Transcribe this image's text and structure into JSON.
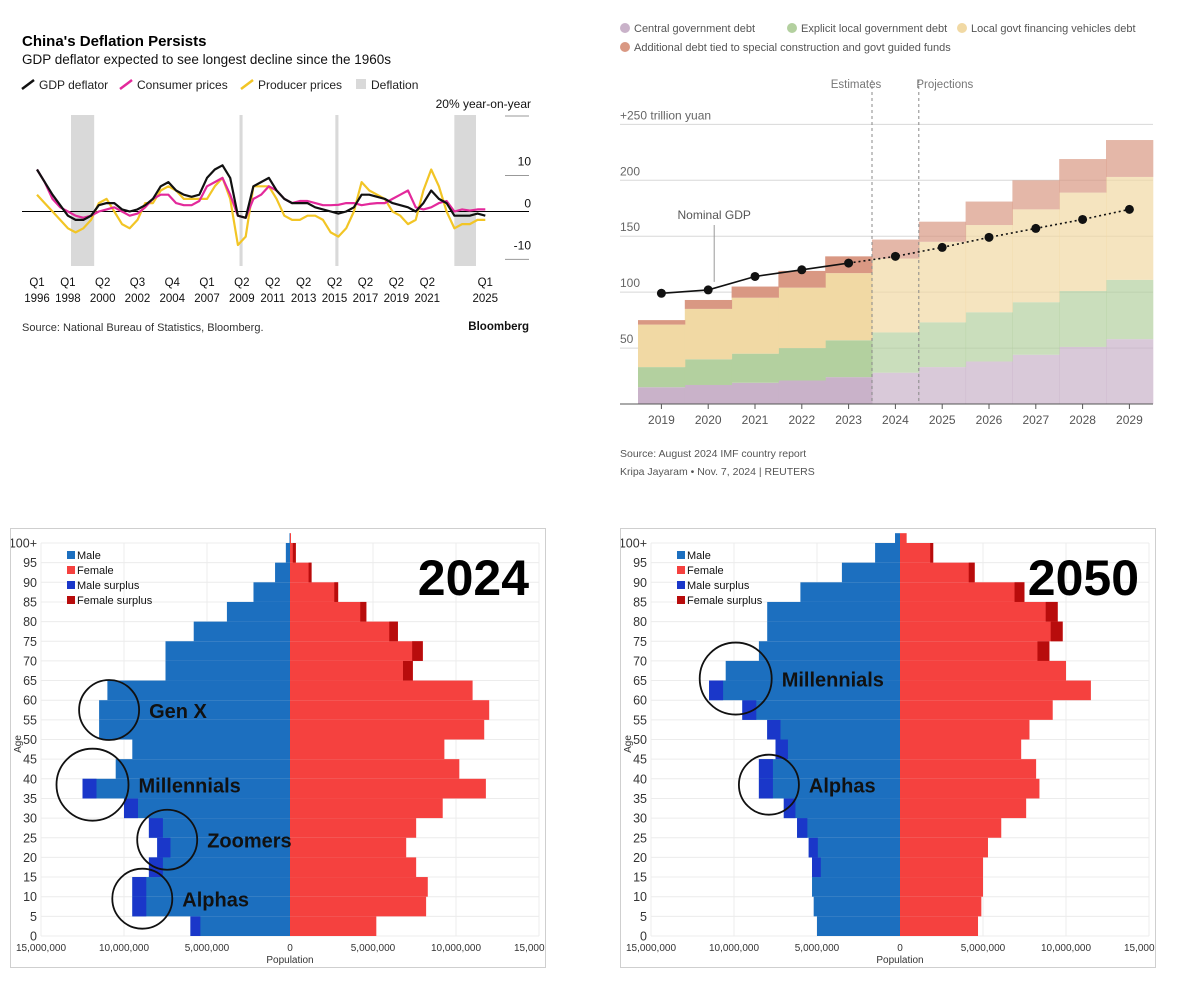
{
  "colors": {
    "gdp": "#111111",
    "cpi": "#e3299b",
    "ppi": "#f2c525",
    "deflation": "#d9d9d9",
    "central": "#c9b2c9",
    "local": "#b3d09f",
    "lgfv": "#f1d9a4",
    "additional": "#d99883",
    "male": "#1c6fbf",
    "female": "#f5413f",
    "male_surplus": "#1a37c9",
    "female_surplus": "#b80c0c"
  },
  "chart_data": [
    {
      "id": "deflation",
      "type": "line",
      "title": "China's Deflation Persists",
      "subtitle": "GDP deflator expected to see longest decline since the 1960s",
      "unit_label": "20% year-on-year",
      "legend": [
        "GDP deflator",
        "Consumer prices",
        "Producer prices",
        "Deflation"
      ],
      "source": "Source: National Bureau of Statistics, Bloomberg.",
      "brand": "Bloomberg",
      "ylim": [
        -13,
        23
      ],
      "xlim": [
        1996,
        2025.5
      ],
      "yticks": [
        {
          "v": 10,
          "label": "10"
        },
        {
          "v": 0,
          "label": "0"
        },
        {
          "v": -10,
          "label": "-10"
        }
      ],
      "xticks": [
        {
          "q": "Q1",
          "y": "1996",
          "v": 1996.0
        },
        {
          "q": "Q1",
          "y": "1998",
          "v": 1998.0
        },
        {
          "q": "Q2",
          "y": "2000",
          "v": 2000.25
        },
        {
          "q": "Q3",
          "y": "2002",
          "v": 2002.5
        },
        {
          "q": "Q4",
          "y": "2004",
          "v": 2004.75
        },
        {
          "q": "Q1",
          "y": "2007",
          "v": 2007.0
        },
        {
          "q": "Q2",
          "y": "2009",
          "v": 2009.25
        },
        {
          "q": "Q2",
          "y": "2011",
          "v": 2011.25
        },
        {
          "q": "Q2",
          "y": "2013",
          "v": 2013.25
        },
        {
          "q": "Q2",
          "y": "2015",
          "v": 2015.25
        },
        {
          "q": "Q2",
          "y": "2017",
          "v": 2017.25
        },
        {
          "q": "Q2",
          "y": "2019",
          "v": 2019.25
        },
        {
          "q": "Q2",
          "y": "2021",
          "v": 2021.25
        },
        {
          "q": "Q1",
          "y": "2025",
          "v": 2025.0
        }
      ],
      "deflation_periods": [
        [
          1998.2,
          1999.7
        ],
        [
          2009.1,
          2009.3
        ],
        [
          2015.3,
          2015.5
        ],
        [
          2023.0,
          2024.4
        ]
      ],
      "series": [
        {
          "name": "GDP deflator",
          "x": [
            1996,
            1996.5,
            1997,
            1997.5,
            1998,
            1998.5,
            1999,
            1999.5,
            2000,
            2000.5,
            2001,
            2001.5,
            2002,
            2002.5,
            2003,
            2003.5,
            2004,
            2004.5,
            2005,
            2005.5,
            2006,
            2006.5,
            2007,
            2007.5,
            2008,
            2008.5,
            2009,
            2009.5,
            2010,
            2010.5,
            2011,
            2011.5,
            2012,
            2012.5,
            2013,
            2013.5,
            2014,
            2014.5,
            2015,
            2015.5,
            2016,
            2016.5,
            2017,
            2017.5,
            2018,
            2018.5,
            2019,
            2019.5,
            2020,
            2020.5,
            2021,
            2021.5,
            2022,
            2022.5,
            2023,
            2023.5,
            2024,
            2024.5,
            2025
          ],
          "values": [
            10,
            7,
            4,
            1.5,
            -1,
            -2,
            -2,
            -1,
            1.5,
            2,
            2,
            0.5,
            0,
            0.5,
            1.5,
            3,
            6,
            7,
            5,
            4,
            3.5,
            4,
            8,
            10,
            11,
            8,
            -1,
            -1.5,
            6,
            7,
            8,
            5,
            3,
            2,
            2,
            2,
            1,
            0.5,
            0,
            -0.5,
            0,
            1,
            4,
            4,
            3.5,
            3,
            2,
            1.5,
            1,
            0,
            2,
            5,
            3,
            2,
            -1,
            -1,
            -1,
            -0.5,
            -1
          ]
        },
        {
          "name": "Consumer prices",
          "x": [
            1996,
            1996.5,
            1997,
            1997.5,
            1998,
            1998.5,
            1999,
            1999.5,
            2000,
            2000.5,
            2001,
            2001.5,
            2002,
            2002.5,
            2003,
            2003.5,
            2004,
            2004.5,
            2005,
            2005.5,
            2006,
            2006.5,
            2007,
            2007.5,
            2008,
            2008.5,
            2009,
            2009.5,
            2010,
            2010.5,
            2011,
            2011.5,
            2012,
            2012.5,
            2013,
            2013.5,
            2014,
            2014.5,
            2015,
            2015.5,
            2016,
            2016.5,
            2017,
            2017.5,
            2018,
            2018.5,
            2019,
            2019.5,
            2020,
            2020.5,
            2021,
            2021.5,
            2022,
            2022.5,
            2023,
            2023.5,
            2024,
            2024.5,
            2025
          ],
          "values": [
            10,
            7,
            3,
            1,
            0,
            -1,
            -1.5,
            -1,
            0,
            0.5,
            1,
            0,
            -1,
            -0.5,
            1,
            3,
            4,
            4,
            2,
            1.5,
            1.5,
            2.5,
            6,
            7,
            8,
            4,
            -1,
            -1.5,
            3,
            4,
            6,
            5,
            3,
            2,
            2.5,
            2.5,
            2,
            1.5,
            1.5,
            1.6,
            2,
            2,
            1.5,
            1.8,
            2,
            2,
            3,
            4,
            5,
            1,
            0.5,
            1,
            2,
            2.5,
            0,
            0.5,
            0.2,
            0.5,
            0.5
          ]
        },
        {
          "name": "Producer prices",
          "x": [
            1996,
            1996.5,
            1997,
            1997.5,
            1998,
            1998.5,
            1999,
            1999.5,
            2000,
            2000.5,
            2001,
            2001.5,
            2002,
            2002.5,
            2003,
            2003.5,
            2004,
            2004.5,
            2005,
            2005.5,
            2006,
            2006.5,
            2007,
            2007.5,
            2008,
            2008.5,
            2009,
            2009.5,
            2010,
            2010.5,
            2011,
            2011.5,
            2012,
            2012.5,
            2013,
            2013.5,
            2014,
            2014.5,
            2015,
            2015.5,
            2016,
            2016.5,
            2017,
            2017.5,
            2018,
            2018.5,
            2019,
            2019.5,
            2020,
            2020.5,
            2021,
            2021.5,
            2022,
            2022.5,
            2023,
            2023.5,
            2024,
            2024.5,
            2025
          ],
          "values": [
            4,
            2,
            0,
            -2,
            -4,
            -5,
            -4,
            -2,
            2,
            3,
            0,
            -3,
            -4,
            -2,
            2,
            2,
            5,
            6,
            5,
            3,
            3,
            3,
            3,
            6,
            8,
            3,
            -8,
            -6,
            6,
            6,
            6,
            3,
            -1,
            -2,
            -2,
            -1,
            -1,
            -2,
            -5,
            -6,
            -4,
            0,
            7,
            5,
            4,
            3,
            0,
            -1,
            -3,
            -2,
            5,
            10,
            6,
            0,
            -4,
            -3,
            -3,
            -2,
            -2
          ]
        }
      ]
    },
    {
      "id": "debt",
      "type": "area",
      "legend": [
        "Central government debt",
        "Explicit local government debt",
        "Local govt financing vehicles debt",
        "Additional debt tied to special construction and govt guided funds"
      ],
      "categories": [
        "2019",
        "2020",
        "2021",
        "2022",
        "2023",
        "2024",
        "2025",
        "2026",
        "2027",
        "2028",
        "2029"
      ],
      "series": [
        {
          "name": "Central government debt",
          "values": [
            15,
            17,
            19,
            21,
            24,
            28,
            33,
            38,
            44,
            51,
            58
          ]
        },
        {
          "name": "Explicit local government debt",
          "values": [
            18,
            23,
            26,
            29,
            33,
            36,
            40,
            44,
            47,
            50,
            53
          ]
        },
        {
          "name": "Local govt financing vehicles debt",
          "values": [
            38,
            45,
            50,
            54,
            60,
            66,
            72,
            78,
            83,
            88,
            92
          ]
        },
        {
          "name": "Additional debt tied to special construction and govt guided funds",
          "values": [
            4,
            8,
            10,
            15,
            15,
            17,
            18,
            21,
            26,
            30,
            33
          ]
        }
      ],
      "gdp_label": "Nominal GDP",
      "gdp": [
        99,
        102,
        114,
        120,
        126,
        132,
        140,
        149,
        157,
        165,
        174
      ],
      "ylim": [
        0,
        270
      ],
      "yticks": [
        {
          "v": 250,
          "label": "+250 trillion yuan"
        },
        {
          "v": 200,
          "label": "200"
        },
        {
          "v": 150,
          "label": "150"
        },
        {
          "v": 100,
          "label": "100"
        },
        {
          "v": 50,
          "label": "50"
        }
      ],
      "estimates_label": "Estimates",
      "projections_label": "Projections",
      "source": "Source: August 2024 IMF country report",
      "credit": "Kripa Jayaram • Nov. 7, 2024 | REUTERS"
    },
    {
      "id": "pyramid_2024",
      "type": "bar",
      "year_label": "2024",
      "legend": [
        "Male",
        "Female",
        "Male surplus",
        "Female surplus"
      ],
      "ylabel": "Age",
      "xlabel": "Population",
      "age_ticks": [
        "0",
        "5",
        "10",
        "15",
        "20",
        "25",
        "30",
        "35",
        "40",
        "45",
        "50",
        "55",
        "60",
        "65",
        "70",
        "75",
        "80",
        "85",
        "90",
        "95",
        "100+"
      ],
      "xlim": [
        -15000000,
        15000000
      ],
      "x_ticks": [
        "15,000,000",
        "10,000,000",
        "5,000,000",
        "0",
        "5,000,000",
        "10,000,000",
        "15,000,000"
      ],
      "annotations": [
        {
          "text": "Gen X",
          "age": 55
        },
        {
          "text": "Millennials",
          "age": 36
        },
        {
          "text": "Zoomers",
          "age": 22
        },
        {
          "text": "Alphas",
          "age": 7
        }
      ],
      "ages": [
        0,
        5,
        10,
        15,
        20,
        25,
        30,
        35,
        40,
        45,
        50,
        55,
        60,
        65,
        70,
        75,
        80,
        85,
        90,
        95,
        100
      ],
      "male": [
        6000000,
        9500000,
        9500000,
        8500000,
        8000000,
        8500000,
        10000000,
        12500000,
        10500000,
        9500000,
        11500000,
        11500000,
        11000000,
        7500000,
        7500000,
        5800000,
        3800000,
        2200000,
        900000,
        250000,
        30000
      ],
      "female": [
        5200000,
        8200000,
        8300000,
        7600000,
        7000000,
        7600000,
        9200000,
        11800000,
        10200000,
        9300000,
        11700000,
        12000000,
        11000000,
        7400000,
        8000000,
        6500000,
        4600000,
        2900000,
        1300000,
        350000,
        60000
      ],
      "male_surplus_ages": [
        0,
        5,
        10,
        15,
        20,
        25,
        30,
        35
      ],
      "female_surplus_ages": [
        65,
        70,
        75,
        80,
        85,
        90,
        95
      ]
    },
    {
      "id": "pyramid_2050",
      "type": "bar",
      "year_label": "2050",
      "legend": [
        "Male",
        "Female",
        "Male surplus",
        "Female surplus"
      ],
      "ylabel": "Age",
      "xlabel": "Population",
      "age_ticks": [
        "0",
        "5",
        "10",
        "15",
        "20",
        "25",
        "30",
        "35",
        "40",
        "45",
        "50",
        "55",
        "60",
        "65",
        "70",
        "75",
        "80",
        "85",
        "90",
        "95",
        "100+"
      ],
      "xlim": [
        -15000000,
        15000000
      ],
      "x_ticks": [
        "15,000,000",
        "10,000,000",
        "5,000,000",
        "0",
        "5,000,000",
        "10,000,000",
        "15,000,000"
      ],
      "annotations": [
        {
          "text": "Millennials",
          "age": 63
        },
        {
          "text": "Alphas",
          "age": 36
        }
      ],
      "ages": [
        0,
        5,
        10,
        15,
        20,
        25,
        30,
        35,
        40,
        45,
        50,
        55,
        60,
        65,
        70,
        75,
        80,
        85,
        90,
        95,
        100
      ],
      "male": [
        5000000,
        5200000,
        5300000,
        5300000,
        5500000,
        6200000,
        7000000,
        8500000,
        8500000,
        7500000,
        8000000,
        9500000,
        11500000,
        10500000,
        8500000,
        8000000,
        8000000,
        6000000,
        3500000,
        1500000,
        300000
      ],
      "female": [
        4700000,
        4900000,
        5000000,
        5000000,
        5300000,
        6100000,
        7600000,
        8400000,
        8200000,
        7300000,
        7800000,
        9200000,
        11500000,
        10000000,
        9000000,
        9800000,
        9500000,
        7500000,
        4500000,
        2000000,
        400000
      ],
      "male_surplus_ages": [
        15,
        20,
        25,
        30,
        35,
        40,
        45,
        50,
        55,
        60
      ],
      "female_surplus_ages": [
        70,
        75,
        80,
        85,
        90,
        95
      ]
    }
  ]
}
